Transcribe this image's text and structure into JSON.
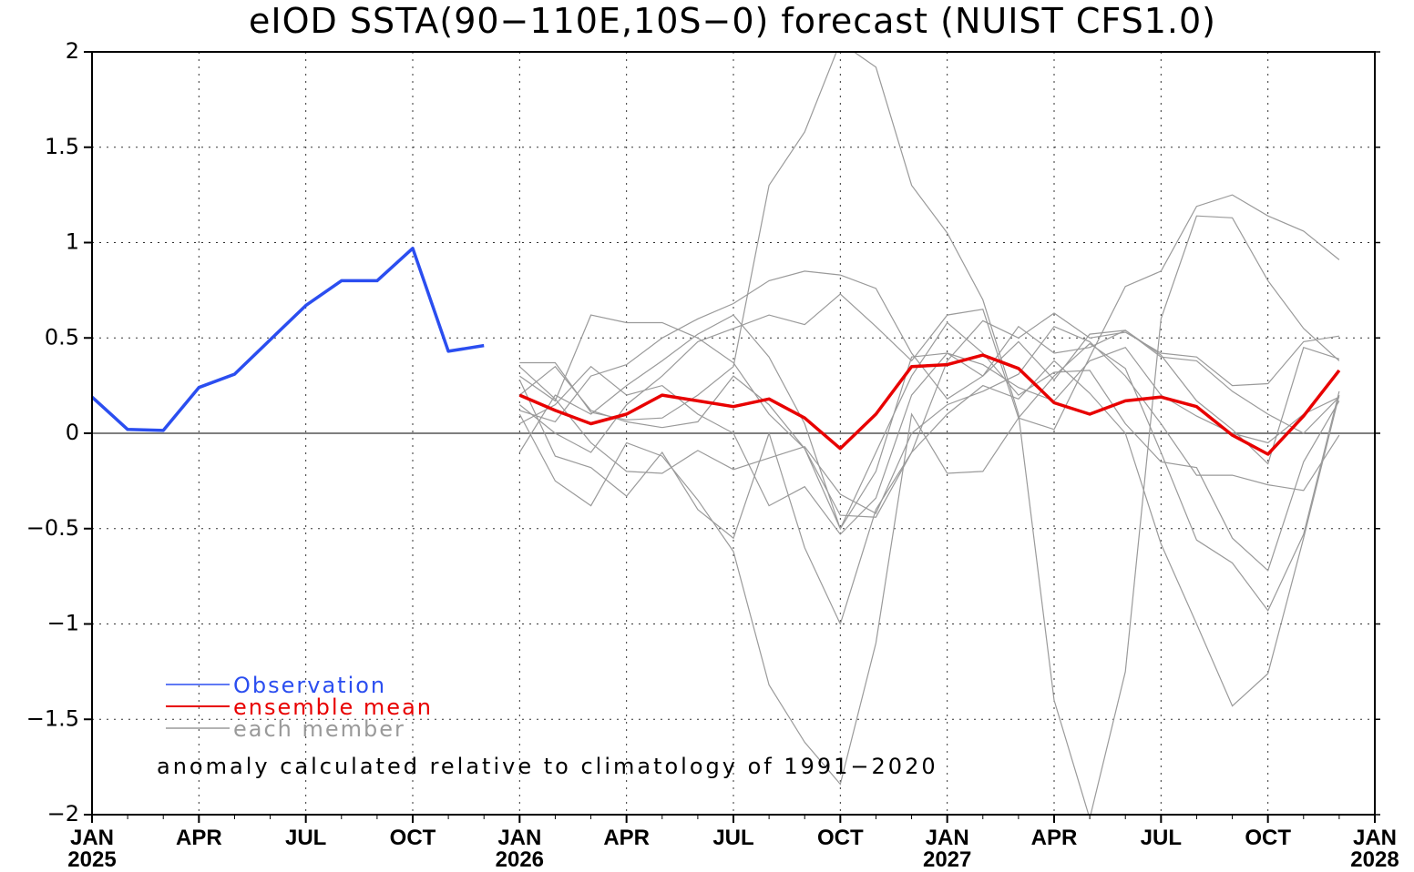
{
  "chart_data": {
    "type": "line",
    "title": "eIOD SSTA(90−110E,10S−0) forecast (NUIST CFS1.0)",
    "ylim": [
      -2,
      2
    ],
    "yticks": [
      2,
      1.5,
      1,
      0.5,
      0,
      -0.5,
      -1,
      -1.5,
      -2
    ],
    "ytick_labels": [
      "2",
      "1.5",
      "1",
      "0.5",
      "0",
      "−0.5",
      "−1",
      "−1.5",
      "−2"
    ],
    "xlim": [
      "2025-01",
      "2028-01"
    ],
    "xticks": [
      {
        "date": "2025-01",
        "label": "JAN"
      },
      {
        "date": "2025-04",
        "label": "APR"
      },
      {
        "date": "2025-07",
        "label": "JUL"
      },
      {
        "date": "2025-10",
        "label": "OCT"
      },
      {
        "date": "2026-01",
        "label": "JAN"
      },
      {
        "date": "2026-04",
        "label": "APR"
      },
      {
        "date": "2026-07",
        "label": "JUL"
      },
      {
        "date": "2026-10",
        "label": "OCT"
      },
      {
        "date": "2027-01",
        "label": "JAN"
      },
      {
        "date": "2027-04",
        "label": "APR"
      },
      {
        "date": "2027-07",
        "label": "JUL"
      },
      {
        "date": "2027-10",
        "label": "OCT"
      },
      {
        "date": "2028-01",
        "label": "JAN"
      }
    ],
    "year_labels": [
      {
        "date": "2025-01",
        "label": "2025"
      },
      {
        "date": "2026-01",
        "label": "2026"
      },
      {
        "date": "2027-01",
        "label": "2027"
      },
      {
        "date": "2028-01",
        "label": "2028"
      }
    ],
    "grid": true,
    "legend_position": "bottom-left",
    "legend": [
      {
        "label": "Observation",
        "color": "#2b4ef0"
      },
      {
        "label": "ensemble mean",
        "color": "#e80000"
      },
      {
        "label": "each member",
        "color": "#9a9a9a"
      }
    ],
    "annotation": "anomaly calculated relative to climatology of 1991−2020",
    "colors": {
      "observation": "#2b4ef0",
      "ensemble_mean": "#e80000",
      "member": "#9a9a9a",
      "zero_line": "#555555",
      "grid": "#333333"
    },
    "observation": {
      "x": [
        "2025-01",
        "2025-02",
        "2025-03",
        "2025-04",
        "2025-05",
        "2025-06",
        "2025-07",
        "2025-08",
        "2025-09",
        "2025-10",
        "2025-11",
        "2025-12"
      ],
      "y": [
        0.19,
        0.02,
        0.015,
        0.24,
        0.31,
        0.49,
        0.67,
        0.8,
        0.8,
        0.97,
        0.43,
        0.46
      ]
    },
    "forecast_x": [
      "2026-01",
      "2026-02",
      "2026-03",
      "2026-04",
      "2026-05",
      "2026-06",
      "2026-07",
      "2026-08",
      "2026-09",
      "2026-10",
      "2026-11",
      "2026-12",
      "2027-01",
      "2027-02",
      "2027-03",
      "2027-04",
      "2027-05",
      "2027-06",
      "2027-07",
      "2027-08",
      "2027-09",
      "2027-10",
      "2027-11",
      "2027-12"
    ],
    "ensemble_mean": [
      0.2,
      0.12,
      0.05,
      0.1,
      0.2,
      0.17,
      0.14,
      0.18,
      0.08,
      -0.08,
      0.1,
      0.35,
      0.36,
      0.41,
      0.34,
      0.16,
      0.1,
      0.17,
      0.19,
      0.14,
      -0.01,
      -0.11,
      0.09,
      0.33
    ],
    "members": [
      [
        0.37,
        0.37,
        0.11,
        0.07,
        0.08,
        0.2,
        0.35,
        1.3,
        1.58,
        2.05,
        1.92,
        1.3,
        1.05,
        0.7,
        0.1,
        -1.4,
        -2.02,
        -1.25,
        0.6,
        1.14,
        1.13,
        0.8,
        0.55,
        0.38
      ],
      [
        0.3,
        0.17,
        0.62,
        0.58,
        0.58,
        0.5,
        0.37,
        0.1,
        -0.08,
        -0.43,
        -0.44,
        -0.1,
        0.38,
        0.59,
        0.5,
        0.63,
        0.5,
        0.53,
        0.42,
        0.4,
        0.25,
        0.26,
        0.48,
        0.51
      ],
      [
        0.12,
        0.06,
        0.3,
        0.36,
        0.5,
        0.6,
        0.68,
        0.8,
        0.85,
        0.83,
        0.76,
        0.42,
        0.18,
        0.3,
        0.56,
        0.42,
        0.45,
        0.54,
        0.4,
        0.38,
        0.22,
        0.1,
        0.0,
        0.19
      ],
      [
        -0.1,
        0.2,
        0.1,
        0.25,
        0.38,
        0.52,
        0.62,
        0.4,
        0.05,
        -0.5,
        -0.2,
        0.4,
        0.42,
        0.3,
        0.48,
        0.28,
        0.52,
        0.54,
        0.41,
        0.17,
        0.02,
        -0.16,
        0.45,
        0.39
      ],
      [
        0.1,
        -0.25,
        -0.38,
        -0.05,
        -0.12,
        -0.35,
        -0.62,
        -1.32,
        -1.62,
        -1.84,
        -1.1,
        0.1,
        -0.21,
        -0.2,
        0.08,
        0.02,
        0.4,
        0.77,
        0.85,
        1.19,
        1.25,
        1.14,
        1.06,
        0.91
      ],
      [
        0.28,
        -0.12,
        -0.18,
        -0.33,
        -0.1,
        -0.4,
        -0.55,
        0.0,
        -0.6,
        -1.0,
        -0.4,
        -0.1,
        0.1,
        0.25,
        0.18,
        0.38,
        0.21,
        0.0,
        -0.58,
        -1.0,
        -1.43,
        -1.26,
        -0.55,
        0.2
      ],
      [
        0.15,
        0.0,
        -0.1,
        0.15,
        0.3,
        0.48,
        0.55,
        0.62,
        0.57,
        0.73,
        0.56,
        0.38,
        0.62,
        0.65,
        0.08,
        0.3,
        0.47,
        0.34,
        -0.1,
        -0.56,
        -0.68,
        -0.93,
        -0.53,
        0.22
      ],
      [
        0.2,
        0.35,
        0.12,
        0.06,
        0.03,
        0.06,
        0.3,
        0.15,
        -0.08,
        -0.5,
        -0.1,
        0.3,
        0.58,
        0.42,
        0.2,
        0.32,
        0.33,
        0.05,
        -0.15,
        -0.18,
        -0.55,
        -0.72,
        -0.15,
        0.17
      ],
      [
        0.35,
        0.18,
        -0.05,
        -0.2,
        -0.21,
        -0.09,
        -0.19,
        -0.13,
        -0.07,
        -0.32,
        -0.42,
        0.0,
        0.15,
        0.22,
        0.31,
        0.56,
        0.48,
        0.3,
        0.05,
        -0.22,
        -0.22,
        -0.27,
        -0.3,
        -0.01
      ],
      [
        0.05,
        0.15,
        0.35,
        0.2,
        0.25,
        0.1,
        0.0,
        -0.38,
        -0.28,
        -0.53,
        -0.34,
        0.2,
        0.42,
        0.36,
        0.24,
        0.17,
        0.38,
        0.45,
        0.2,
        0.09,
        0.0,
        -0.05,
        0.1,
        0.19
      ]
    ]
  }
}
